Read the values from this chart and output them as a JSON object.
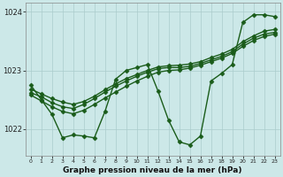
{
  "xlabel": "Graphe pression niveau de la mer (hPa)",
  "background_color": "#cce8e8",
  "grid_color": "#aacccc",
  "line_color": "#1a5c1a",
  "xlim": [
    -0.5,
    23.5
  ],
  "ylim": [
    1021.55,
    1024.15
  ],
  "yticks": [
    1022,
    1023,
    1024
  ],
  "xticks": [
    0,
    1,
    2,
    3,
    4,
    5,
    6,
    7,
    8,
    9,
    10,
    11,
    12,
    13,
    14,
    15,
    16,
    17,
    18,
    19,
    20,
    21,
    22,
    23
  ],
  "series": [
    [
      1022.75,
      1022.5,
      1022.25,
      1021.85,
      1021.9,
      1021.88,
      1021.85,
      1022.3,
      1022.85,
      1023.0,
      1023.05,
      1023.1,
      1022.65,
      1022.15,
      1021.78,
      1021.73,
      1021.88,
      1022.82,
      1022.95,
      1023.1,
      1023.82,
      1023.95,
      1023.95,
      1023.92
    ],
    [
      1022.62,
      1022.55,
      1022.45,
      1022.38,
      1022.35,
      1022.42,
      1022.52,
      1022.63,
      1022.73,
      1022.82,
      1022.9,
      1022.97,
      1023.03,
      1023.05,
      1023.05,
      1023.07,
      1023.12,
      1023.18,
      1023.24,
      1023.32,
      1023.45,
      1023.55,
      1023.62,
      1023.65
    ],
    [
      1022.68,
      1022.6,
      1022.52,
      1022.46,
      1022.42,
      1022.47,
      1022.56,
      1022.67,
      1022.77,
      1022.86,
      1022.93,
      1023.0,
      1023.06,
      1023.08,
      1023.09,
      1023.11,
      1023.15,
      1023.22,
      1023.28,
      1023.36,
      1023.49,
      1023.59,
      1023.67,
      1023.7
    ],
    [
      1022.58,
      1022.48,
      1022.38,
      1022.3,
      1022.26,
      1022.32,
      1022.42,
      1022.53,
      1022.63,
      1022.73,
      1022.82,
      1022.9,
      1022.97,
      1023.0,
      1023.01,
      1023.04,
      1023.09,
      1023.15,
      1023.21,
      1023.29,
      1023.41,
      1023.51,
      1023.58,
      1023.62
    ]
  ],
  "marker": "D",
  "markersize": 2.5,
  "linewidth": 1.0
}
